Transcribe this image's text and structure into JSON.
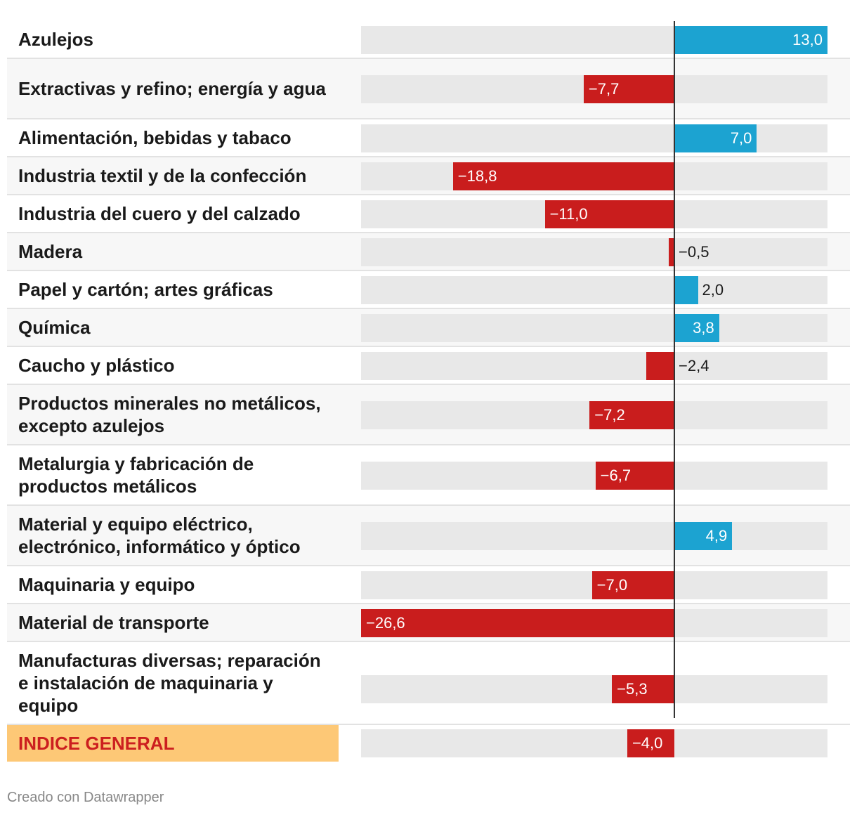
{
  "chart_data": {
    "type": "bar",
    "orientation": "horizontal",
    "xlim": [
      -26.6,
      13.0
    ],
    "categories": [
      "Azulejos",
      "Extractivas y refino; energía y agua",
      "Alimentación, bebidas y tabaco",
      "Industria textil y de la confección",
      "Industria del cuero y del calzado",
      "Madera",
      "Papel y cartón; artes gráficas",
      "Química",
      "Caucho y plástico",
      "Productos minerales no metálicos, excepto azulejos",
      "Metalurgia y fabricación de productos metálicos",
      "Material y equipo eléctrico, electrónico, informático y óptico",
      "Maquinaria y equipo",
      "Material de transporte",
      "Manufacturas diversas; reparación e instalación de maquinaria y equipo",
      "INDICE GENERAL"
    ],
    "values": [
      13.0,
      -7.7,
      7.0,
      -18.8,
      -11.0,
      -0.5,
      2.0,
      3.8,
      -2.4,
      -7.2,
      -6.7,
      4.9,
      -7.0,
      -26.6,
      -5.3,
      -4.0
    ],
    "value_labels": [
      "13,0",
      "−7,7",
      "7,0",
      "−18,8",
      "−11,0",
      "−0,5",
      "2,0",
      "3,8",
      "−2,4",
      "−7,2",
      "−6,7",
      "4,9",
      "−7,0",
      "−26,6",
      "−5,3",
      "−4,0"
    ],
    "highlight": "INDICE GENERAL"
  },
  "colors": {
    "positive": "#1ca3d1",
    "negative": "#c91d1d",
    "highlight_bg": "#fdc876",
    "highlight_text": "#cc1f1f"
  },
  "footer": {
    "credit": "Creado con Datawrapper"
  }
}
